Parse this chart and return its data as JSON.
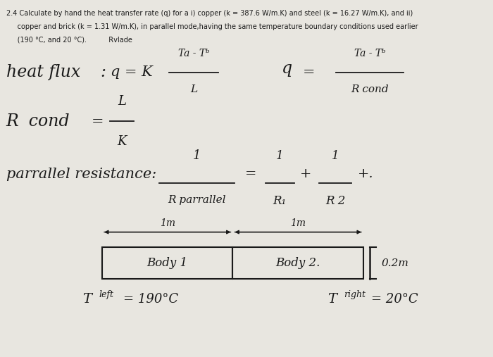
{
  "bg_color": "#e8e6e0",
  "font_color": "#1a1a1a",
  "figsize": [
    7.0,
    5.07
  ],
  "dpi": 100,
  "header": [
    "2.4 Calculate by hand the heat transfer rate (q) for a i) copper (k = 387.6 W/m.K) and steel (k = 16.27 W/m.K), and ii)",
    "     copper and brick (k = 1.31 W/m.K), in parallel mode,having the same temperature boundary conditions used earlier",
    "     (190 °C, and 20 °C).          RvIade"
  ],
  "header_fontsize": 7.0,
  "hf_label": "heat flux",
  "hf_colon": ":",
  "hf_q1": "q = K",
  "hf_num1": "Ta - Tᵇ",
  "hf_den1": "L",
  "hf_q2": "q",
  "hf_eq2": "=",
  "hf_num2": "Ta - Tᵇ",
  "hf_den2": "R cond",
  "rc_label": "R  cond",
  "rc_eq": "=",
  "rc_num": "L",
  "rc_den": "K",
  "par_label": "parrallel resistance:",
  "par_num1": "1",
  "par_den1": "R parrallel",
  "par_eq": "=",
  "par_num2": "1",
  "par_den2": "R₁",
  "par_plus1": "+",
  "par_num3": "1",
  "par_den3": "R 2",
  "par_plus2": "+.",
  "dim1": "1m",
  "dim2": "1m",
  "body1": "Body 1",
  "body2": "Body 2.",
  "dim3": "0.2m",
  "tleft": "Tleft = 190°C",
  "tright": "Tright = 20°C"
}
